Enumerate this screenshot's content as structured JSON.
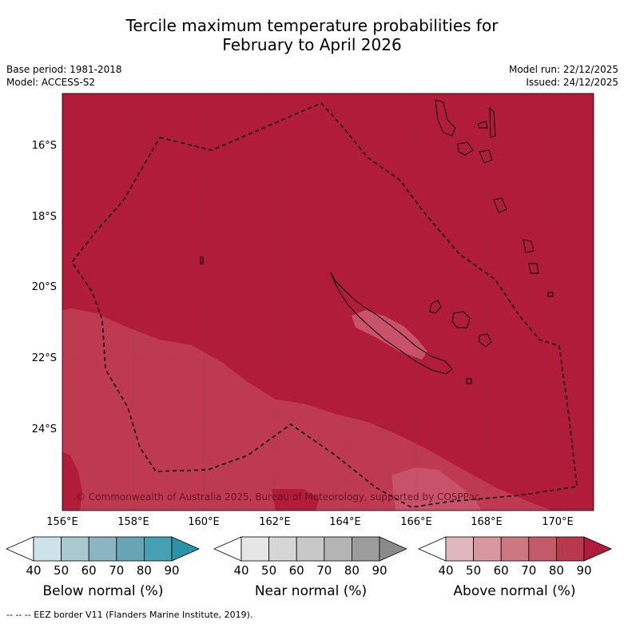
{
  "title": {
    "line1": "Tercile maximum temperature probabilities for",
    "line2": "February to April 2026"
  },
  "meta": {
    "base_period": "Base period: 1981-2018",
    "model": "Model: ACCESS-S2",
    "model_run": "Model run: 22/12/2025",
    "issued": "Issued: 24/12/2025"
  },
  "map": {
    "lon_range": [
      156,
      171
    ],
    "lat_range": [
      -26.2,
      -14.3
    ],
    "lat_ticks": [
      "16°S",
      "18°S",
      "20°S",
      "22°S",
      "24°S"
    ],
    "lon_ticks": [
      "156°E",
      "158°E",
      "160°E",
      "162°E",
      "164°E",
      "166°E",
      "168°E",
      "170°E"
    ],
    "copyright": "© Commonwealth of Australia 2025, Bureau of Meteorology, supported by COSPPac",
    "colors": {
      "above_80_90": "#b11c3a",
      "above_70_80": "#be3a50",
      "above_60_70": "#c8526a",
      "eez_line": "#000000"
    }
  },
  "colorbars": [
    {
      "label": "Below normal (%)",
      "ticks": [
        "40",
        "50",
        "60",
        "70",
        "80",
        "90"
      ],
      "colors": [
        "#ffffff",
        "#cde3e9",
        "#a9c9d0",
        "#8bb6c1",
        "#67a5b4",
        "#45a0b2",
        "#2a93a8"
      ]
    },
    {
      "label": "Near normal (%)",
      "ticks": [
        "40",
        "50",
        "60",
        "70",
        "80",
        "90"
      ],
      "colors": [
        "#ffffff",
        "#e6e6e6",
        "#d6d6d6",
        "#c8c8c8",
        "#b4b4b4",
        "#9c9c9c",
        "#8a8a8a"
      ]
    },
    {
      "label": "Above normal (%)",
      "ticks": [
        "40",
        "50",
        "60",
        "70",
        "80",
        "90"
      ],
      "colors": [
        "#ffffff",
        "#dfb8bf",
        "#d7979f",
        "#cd7880",
        "#c25a6a",
        "#b8384e",
        "#b11c3a"
      ]
    }
  ],
  "footnote": "--  --  -- EEZ border V11 (Flanders Marine Institute, 2019)."
}
